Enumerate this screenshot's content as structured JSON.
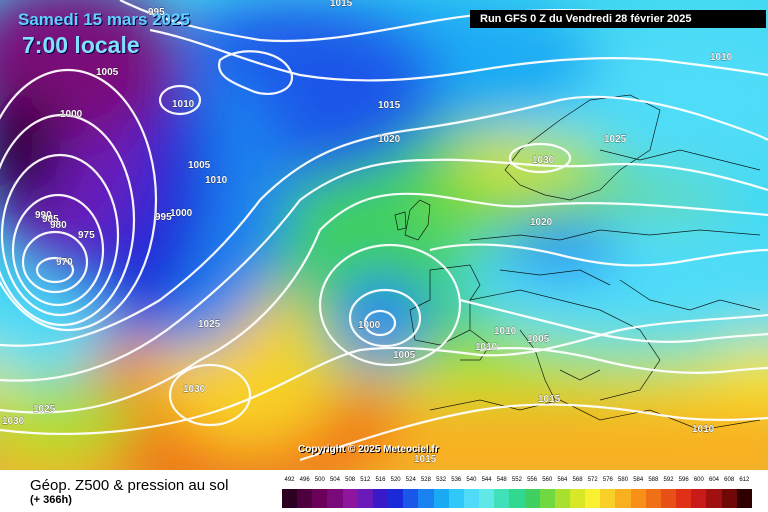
{
  "header": {
    "date": "Samedi 15 mars 2025",
    "time": "7:00 locale",
    "run": "Run GFS 0 Z du Vendredi 28 février 2025"
  },
  "footer": {
    "param": "Géop. Z500 & pression au sol",
    "lead": "(+ 366h)",
    "copyright": "Copyright © 2025 Meteociel.fr"
  },
  "legend": {
    "values": [
      "492",
      "496",
      "500",
      "504",
      "508",
      "512",
      "516",
      "520",
      "524",
      "528",
      "532",
      "536",
      "540",
      "544",
      "548",
      "552",
      "556",
      "560",
      "564",
      "568",
      "572",
      "576",
      "580",
      "584",
      "588",
      "592",
      "596",
      "600",
      "604",
      "608",
      "612"
    ],
    "colors": [
      "#2b0020",
      "#4d003d",
      "#6b005a",
      "#7a0a7a",
      "#8e169e",
      "#6a1ab8",
      "#3a1ac8",
      "#1a2ad8",
      "#1a56e8",
      "#1a82f0",
      "#1aaaf4",
      "#30c8f8",
      "#50dcf8",
      "#60e8e8",
      "#40e0b8",
      "#30d890",
      "#40d060",
      "#70d840",
      "#a8e030",
      "#d8e828",
      "#f8f030",
      "#f8d028",
      "#f8b020",
      "#f89018",
      "#f07018",
      "#e85018",
      "#e03018",
      "#c81a18",
      "#a01010",
      "#700808",
      "#300000"
    ]
  },
  "isobars": {
    "labels": [
      "1015",
      "995",
      "1005",
      "1010",
      "1000",
      "990",
      "985",
      "980",
      "975",
      "970",
      "1005",
      "1010",
      "995",
      "1000",
      "1015",
      "1020",
      "1030",
      "1025",
      "1020",
      "1010",
      "1025",
      "1030",
      "1025",
      "1030",
      "1000",
      "1005",
      "1010",
      "1010",
      "1005",
      "1015",
      "1010",
      "1015"
    ]
  },
  "map": {
    "palette": {
      "purple": "#5a0a6a",
      "violet": "#7a1a9a",
      "navy": "#1a2ad8",
      "blue": "#1a82f0",
      "cyan": "#40d8f0",
      "green": "#40d060",
      "lime": "#a8e030",
      "yellow": "#f8e830",
      "orange": "#f8a020",
      "deep-orange": "#f07018"
    }
  }
}
